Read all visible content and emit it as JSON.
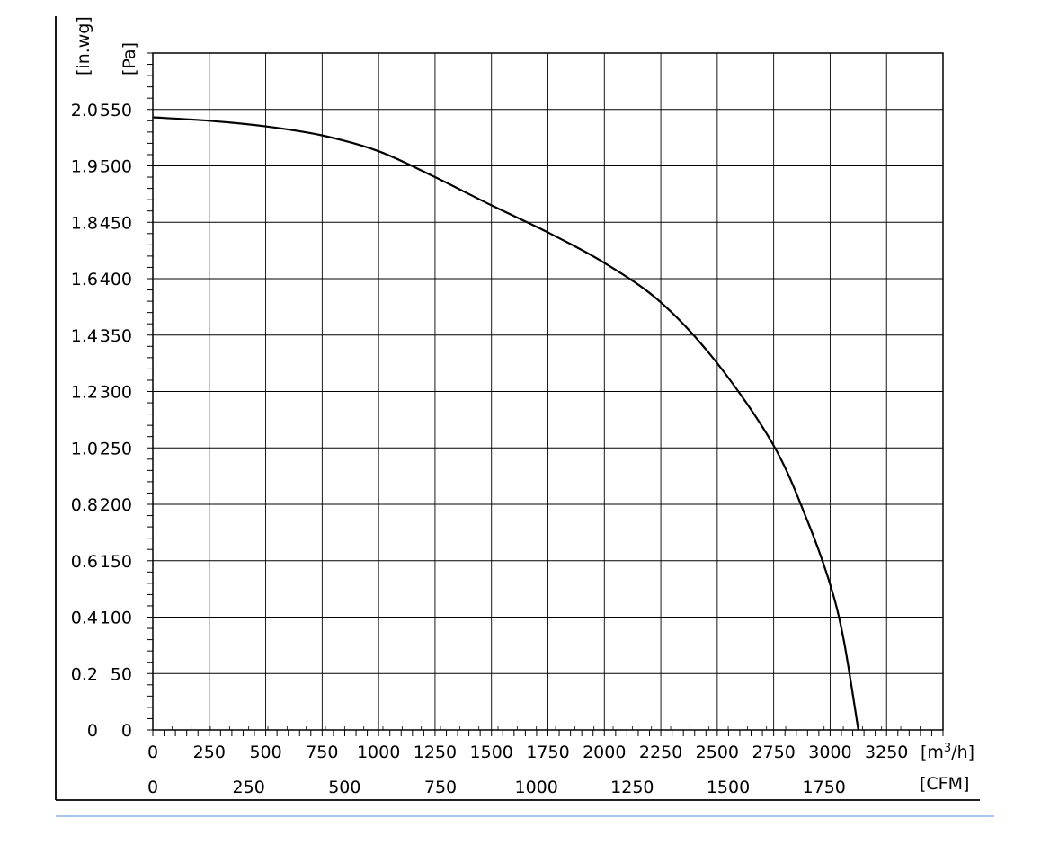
{
  "chart_data": {
    "type": "line",
    "title": "",
    "x_units": [
      "[m³/h]",
      "[CFM]"
    ],
    "x_ticks_m3h": [
      0,
      250,
      500,
      750,
      1000,
      1250,
      1500,
      1750,
      2000,
      2250,
      2500,
      2750,
      3000,
      3250
    ],
    "x_ticks_cfm": [
      0,
      250,
      500,
      750,
      1000,
      1250,
      1500,
      1750
    ],
    "xlim": [
      0,
      3500
    ],
    "y_units": [
      "[in.wg]",
      "[Pa]"
    ],
    "y_ticks_pa": [
      0,
      50,
      100,
      150,
      200,
      250,
      300,
      350,
      400,
      450,
      500,
      550
    ],
    "y_ticks_inwg": [
      "0",
      "0.2",
      "0.4",
      "0.6",
      "0.8",
      "1.0",
      "1.2",
      "1.4",
      "1.6",
      "1.8",
      "1.9",
      "2.0"
    ],
    "ylim": [
      0,
      600
    ],
    "grid": true,
    "series": [
      {
        "x": [
          0,
          250,
          500,
          750,
          1000,
          1250,
          1500,
          1750,
          2000,
          2250,
          2500,
          2750,
          2900,
          3000,
          3060,
          3125
        ],
        "y": [
          543,
          540,
          535,
          527,
          513,
          490,
          465,
          441,
          414,
          379,
          325,
          252,
          185,
          129,
          80,
          0
        ]
      }
    ]
  }
}
